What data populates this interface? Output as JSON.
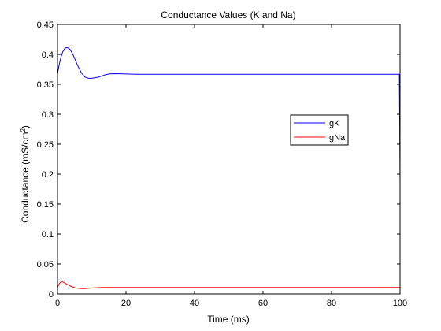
{
  "chart_data": {
    "type": "line",
    "title": "Conductance Values (K and Na)",
    "xlabel": "Time (ms)",
    "ylabel": "Conductance (mS/cm",
    "ylabel_superscript": "2",
    "ylabel_suffix": ")",
    "xlim": [
      0,
      100
    ],
    "ylim": [
      0,
      0.45
    ],
    "xticks": [
      0,
      20,
      40,
      60,
      80,
      100
    ],
    "xtick_labels": [
      "0",
      "20",
      "40",
      "60",
      "80",
      "100"
    ],
    "yticks": [
      0,
      0.05,
      0.1,
      0.15,
      0.2,
      0.25,
      0.3,
      0.35,
      0.4,
      0.45
    ],
    "ytick_labels": [
      "0",
      "0.05",
      "0.1",
      "0.15",
      "0.2",
      "0.25",
      "0.3",
      "0.35",
      "0.4",
      "0.45"
    ],
    "grid": false,
    "legend_placement": "right",
    "series": [
      {
        "name": "gK",
        "color": "#0000ff",
        "x": [
          0,
          0.5,
          1,
          1.5,
          2,
          2.5,
          3,
          3.5,
          4,
          4.5,
          5,
          6,
          7,
          8,
          9,
          10,
          11,
          12,
          13,
          14,
          15,
          16,
          17,
          18,
          19,
          20,
          22,
          24,
          26,
          30,
          40,
          60,
          80,
          99.8,
          100
        ],
        "y": [
          0.367,
          0.383,
          0.395,
          0.404,
          0.409,
          0.411,
          0.411,
          0.409,
          0.405,
          0.4,
          0.393,
          0.38,
          0.369,
          0.362,
          0.36,
          0.36,
          0.361,
          0.362,
          0.364,
          0.366,
          0.3672,
          0.3676,
          0.3677,
          0.3676,
          0.3674,
          0.3672,
          0.367,
          0.3668,
          0.3668,
          0.3668,
          0.3668,
          0.3668,
          0.3668,
          0.3668,
          0.183
        ]
      },
      {
        "name": "gNa",
        "color": "#ff0000",
        "x": [
          0,
          0.5,
          1,
          1.5,
          2,
          2.5,
          3,
          4,
          5,
          6,
          7,
          8,
          9,
          10,
          11,
          12,
          14,
          16,
          20,
          30,
          40,
          60,
          80,
          100
        ],
        "y": [
          0.011,
          0.017,
          0.02,
          0.02,
          0.019,
          0.017,
          0.0155,
          0.0125,
          0.0105,
          0.0093,
          0.0088,
          0.0089,
          0.0093,
          0.0098,
          0.0103,
          0.0106,
          0.0108,
          0.0108,
          0.0108,
          0.0108,
          0.0108,
          0.0108,
          0.0108,
          0.0108
        ]
      }
    ]
  }
}
